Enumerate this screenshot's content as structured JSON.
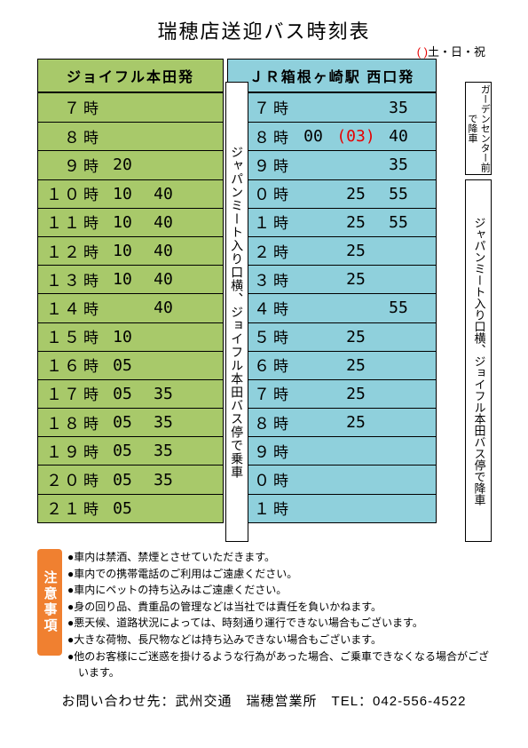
{
  "title": "瑞穂店送迎バス時刻表",
  "legend": {
    "paren": "( )",
    "text": "土・日・祝"
  },
  "colors": {
    "left_bg": "#a8c96a",
    "right_bg": "#8fd0dc",
    "border": "#000000",
    "special": "#e60000",
    "badge_bg": "#f08030",
    "badge_fg": "#ffffff",
    "page_bg": "#ffffff"
  },
  "left": {
    "header": "ジョイフル本田発",
    "side_label": "ジャパンミート入り口横、ジョイフル本田バス停で乗車",
    "rows": [
      {
        "hour": "　７",
        "m": [
          "",
          ""
        ]
      },
      {
        "hour": "　８",
        "m": [
          "",
          ""
        ]
      },
      {
        "hour": "　９",
        "m": [
          "20",
          ""
        ]
      },
      {
        "hour": "１０",
        "m": [
          "10",
          "40"
        ]
      },
      {
        "hour": "１１",
        "m": [
          "10",
          "40"
        ]
      },
      {
        "hour": "１２",
        "m": [
          "10",
          "40"
        ]
      },
      {
        "hour": "１３",
        "m": [
          "10",
          "40"
        ]
      },
      {
        "hour": "１４",
        "m": [
          "",
          "40"
        ]
      },
      {
        "hour": "１５",
        "m": [
          "10",
          ""
        ]
      },
      {
        "hour": "１６",
        "m": [
          "05",
          ""
        ]
      },
      {
        "hour": "１７",
        "m": [
          "05",
          "35"
        ]
      },
      {
        "hour": "１８",
        "m": [
          "05",
          "35"
        ]
      },
      {
        "hour": "１９",
        "m": [
          "05",
          "35"
        ]
      },
      {
        "hour": "２０",
        "m": [
          "05",
          "35"
        ]
      },
      {
        "hour": "２１",
        "m": [
          "05",
          ""
        ]
      }
    ]
  },
  "right": {
    "header": "ＪＲ箱根ヶ崎駅 西口発",
    "side_label_top": "ガーデンセンター前で降車",
    "side_label_bottom": "ジャパンミート入り口横、ジョイフル本田バス停で降車",
    "rows": [
      {
        "hour": "　７",
        "m": [
          "",
          "",
          "35"
        ]
      },
      {
        "hour": "　８",
        "m": [
          "00",
          "(03)",
          "40"
        ],
        "special_idx": 1
      },
      {
        "hour": "　９",
        "m": [
          "",
          "",
          "35"
        ]
      },
      {
        "hour": "１０",
        "m": [
          "",
          "25",
          "55"
        ]
      },
      {
        "hour": "１１",
        "m": [
          "",
          "25",
          "55"
        ]
      },
      {
        "hour": "１２",
        "m": [
          "",
          "25",
          ""
        ]
      },
      {
        "hour": "１３",
        "m": [
          "",
          "25",
          ""
        ]
      },
      {
        "hour": "１４",
        "m": [
          "",
          "",
          "55"
        ]
      },
      {
        "hour": "１５",
        "m": [
          "",
          "25",
          ""
        ]
      },
      {
        "hour": "１６",
        "m": [
          "",
          "25",
          ""
        ]
      },
      {
        "hour": "１７",
        "m": [
          "",
          "25",
          ""
        ]
      },
      {
        "hour": "１８",
        "m": [
          "",
          "25",
          ""
        ]
      },
      {
        "hour": "１９",
        "m": [
          "",
          "",
          ""
        ]
      },
      {
        "hour": "２０",
        "m": [
          "",
          "",
          ""
        ]
      },
      {
        "hour": "２１",
        "m": [
          "",
          "",
          ""
        ]
      }
    ]
  },
  "hour_unit": "時",
  "notes": {
    "badge": "注意事項",
    "items": [
      "●車内は禁酒、禁煙とさせていただきます。",
      "●車内での携帯電話のご利用はご遠慮ください。",
      "●車内にペットの持ち込みはご遠慮ください。",
      "●身の回り品、貴重品の管理などは当社では責任を負いかねます。",
      "●悪天候、道路状況によっては、時刻通り運行できない場合もございます。",
      "●大きな荷物、長尺物などは持ち込みできない場合もございます。",
      "●他のお客様にご迷惑を掛けるような行為があった場合、ご乗車できなくなる場合がございます。"
    ]
  },
  "contact": "お問い合わせ先：武州交通　瑞穂営業所　TEL：042-556-4522"
}
